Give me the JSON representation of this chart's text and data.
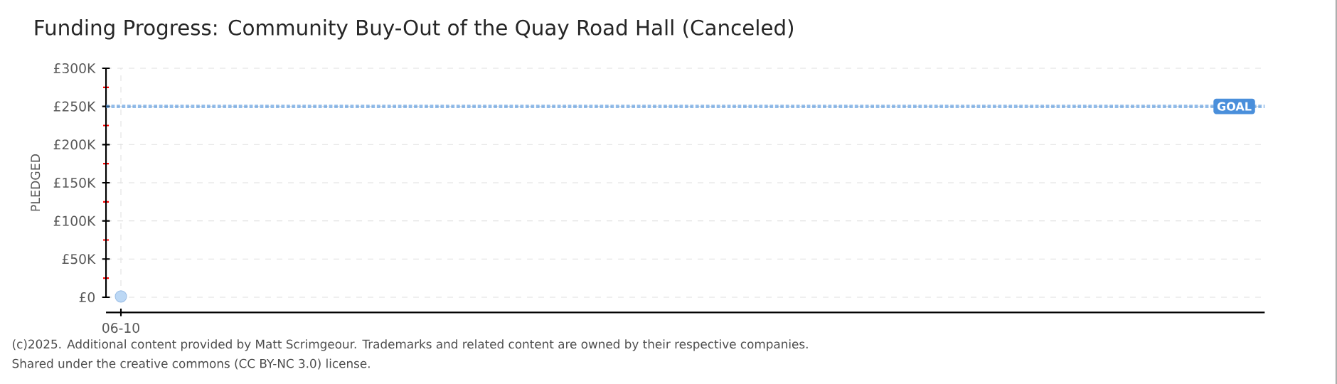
{
  "chart_data": {
    "type": "scatter",
    "title": "Funding Progress: Community Buy-Out of the Quay Road Hall (Canceled)",
    "ylabel": "PLEDGED",
    "categories": [
      "06-10"
    ],
    "series": [
      {
        "color": "#bcd8f5",
        "values": [
          1000
        ]
      }
    ],
    "marker": "circle",
    "grid": true,
    "ylim": [
      0,
      300000
    ],
    "yticks": [
      {
        "value": 0,
        "label": "£0"
      },
      {
        "value": 50000,
        "label": "£50K"
      },
      {
        "value": 100000,
        "label": "£100K"
      },
      {
        "value": 150000,
        "label": "£150K"
      },
      {
        "value": 200000,
        "label": "£200K"
      },
      {
        "value": 250000,
        "label": "£250K"
      },
      {
        "value": 300000,
        "label": "£300K"
      }
    ],
    "ref_lines": [
      {
        "axis": "y",
        "value": 250000,
        "label": "GOAL",
        "color": "#4a8fdb",
        "line_style": "dotted"
      }
    ],
    "annotations": [
      "(c)2025. Additional content provided by Matt Scrimgeour. Trademarks and related content are owned by their respective companies.",
      "Shared under the creative commons (CC BY-NC 3.0) license."
    ]
  }
}
